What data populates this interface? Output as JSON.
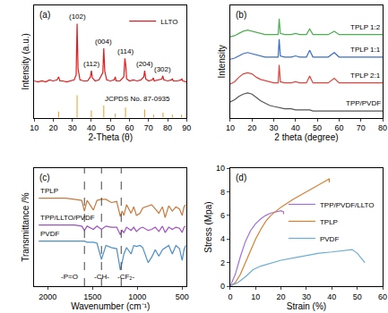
{
  "chart_data": [
    {
      "type": "line",
      "title": "(a)",
      "xlabel": "2-Theta (θ)",
      "ylabel": "Intensity (a.u.)",
      "xlim": [
        10,
        90
      ],
      "xticks": [
        10,
        20,
        30,
        40,
        50,
        60,
        70,
        80,
        90
      ],
      "ylim": [
        0,
        110
      ],
      "tick_labels": "x",
      "legend": "upper right",
      "series": [
        {
          "name": "LLTO",
          "color": "#e41a1c",
          "x": [
            10,
            12,
            14,
            16,
            18,
            20,
            22,
            22.8,
            23.5,
            25,
            27,
            29,
            31,
            32,
            32.5,
            33,
            34,
            36,
            38,
            39.5,
            40,
            40.5,
            42,
            44,
            46,
            46.5,
            47,
            48,
            50,
            52,
            52.5,
            53,
            55,
            57,
            57.6,
            58,
            58.5,
            60,
            62,
            64,
            66,
            67.5,
            68,
            68.5,
            70,
            72,
            72.5,
            73,
            75,
            77,
            77.5,
            78,
            80,
            82,
            82.5,
            83,
            85,
            87,
            87.5,
            88,
            90
          ],
          "values": [
            36,
            35,
            36,
            35,
            37,
            36,
            37,
            40,
            36,
            36,
            35,
            36,
            37,
            42,
            92,
            48,
            37,
            36,
            36,
            40,
            46,
            39,
            36,
            37,
            44,
            68,
            46,
            37,
            36,
            37,
            40,
            36,
            36,
            40,
            58,
            52,
            38,
            36,
            37,
            36,
            37,
            40,
            46,
            38,
            36,
            37,
            39,
            36,
            37,
            38,
            41,
            37,
            36,
            37,
            38,
            36,
            36,
            37,
            38,
            36,
            35
          ]
        },
        {
          "name": "JCPDS No. 87-0935",
          "type": "bar",
          "color": "#f0a030",
          "x": [
            22.8,
            32.5,
            40,
            46.5,
            52.5,
            57.9,
            68,
            72.7,
            77.6,
            82.5,
            87.3
          ],
          "values": [
            6,
            22,
            7,
            12,
            4,
            10,
            8,
            3,
            5,
            3,
            3
          ]
        }
      ],
      "annotations": [
        {
          "x": 32.5,
          "y": 93,
          "text": "(102)"
        },
        {
          "x": 40,
          "y": 47,
          "text": "(112)"
        },
        {
          "x": 46.5,
          "y": 69,
          "text": "(004)"
        },
        {
          "x": 58,
          "y": 59,
          "text": "(114)"
        },
        {
          "x": 68,
          "y": 47,
          "text": "(204)"
        },
        {
          "x": 77.5,
          "y": 42,
          "text": "(302)"
        }
      ]
    },
    {
      "type": "line",
      "title": "(b)",
      "xlabel": "2 theta (degree)",
      "ylabel": "Intensity",
      "xlim": [
        10,
        80
      ],
      "xticks": [
        10,
        20,
        30,
        40,
        50,
        60,
        70,
        80
      ],
      "ylim": [
        0,
        100
      ],
      "tick_labels": "x",
      "series": [
        {
          "name": "TPP/PVDF",
          "color": "#555555",
          "x": [
            10,
            12,
            14,
            16,
            18,
            20,
            22,
            24,
            26,
            28,
            30,
            32,
            32.5,
            33,
            35,
            38,
            40,
            42,
            45,
            46.5,
            48,
            50,
            55,
            57.8,
            60,
            65,
            70,
            75,
            80
          ],
          "values": [
            14,
            16,
            19,
            21,
            22,
            21,
            18,
            15,
            13,
            11,
            10,
            9,
            9,
            9,
            8,
            8,
            7,
            7,
            7,
            7,
            6,
            6,
            6,
            6,
            6,
            6,
            6,
            6,
            6
          ]
        },
        {
          "name": "TPLP 2:1",
          "color": "#e0443c",
          "x": [
            10,
            12,
            14,
            16,
            18,
            20,
            22,
            24,
            26,
            28,
            30,
            32,
            32.5,
            33,
            35,
            38,
            40,
            42,
            45,
            46.5,
            48,
            50,
            55,
            57.8,
            60,
            65,
            70,
            75,
            80
          ],
          "values": [
            30,
            32,
            36,
            39,
            40,
            39,
            36,
            34,
            33,
            32,
            31,
            31,
            47,
            32,
            31,
            31,
            32,
            31,
            31,
            37,
            31,
            31,
            31,
            35,
            31,
            31,
            31,
            31,
            31
          ]
        },
        {
          "name": "TPLP 1:1",
          "color": "#3a6fc4",
          "x": [
            10,
            12,
            14,
            16,
            18,
            20,
            22,
            24,
            26,
            28,
            30,
            32,
            32.5,
            33,
            35,
            38,
            40,
            42,
            45,
            46.5,
            48,
            50,
            55,
            57.8,
            60,
            65,
            70,
            75,
            80
          ],
          "values": [
            52,
            53,
            55,
            57,
            58,
            57,
            56,
            55,
            54,
            54,
            54,
            54,
            70,
            55,
            54,
            54,
            55,
            54,
            54,
            60,
            54,
            54,
            54,
            58,
            54,
            54,
            54,
            54,
            54
          ]
        },
        {
          "name": "TPLP 1:2",
          "color": "#4caf50",
          "x": [
            10,
            12,
            14,
            16,
            18,
            20,
            22,
            24,
            26,
            28,
            30,
            32,
            32.5,
            33,
            35,
            38,
            40,
            42,
            45,
            46.5,
            48,
            50,
            55,
            57.8,
            60,
            65,
            70,
            75,
            80
          ],
          "values": [
            72,
            73,
            75,
            77,
            78,
            77,
            76,
            75,
            74,
            74,
            74,
            74,
            88,
            75,
            74,
            74,
            75,
            74,
            74,
            79,
            74,
            74,
            74,
            77,
            74,
            74,
            74,
            74,
            74
          ]
        }
      ]
    },
    {
      "type": "line",
      "title": "(c)",
      "xlabel": "Wavenumber (cm⁻¹)",
      "ylabel": "Transmittance /%",
      "xlim": [
        2150,
        450
      ],
      "xticks": [
        2000,
        1500,
        1000,
        500
      ],
      "ylim": [
        0,
        110
      ],
      "tick_labels": "x",
      "reference_lines": [
        1590,
        1400,
        1180
      ],
      "series": [
        {
          "name": "TPLP",
          "color": "#c87a3a",
          "x": [
            2100,
            2000,
            1900,
            1800,
            1700,
            1620,
            1590,
            1560,
            1490,
            1450,
            1400,
            1350,
            1290,
            1230,
            1190,
            1170,
            1150,
            1120,
            1070,
            1040,
            1010,
            970,
            940,
            880,
            840,
            800,
            760,
            720,
            690,
            650,
            610,
            570,
            530,
            500,
            480,
            460
          ],
          "values": [
            82,
            82,
            82,
            82,
            81,
            80,
            70,
            80,
            71,
            80,
            81,
            81,
            78,
            79,
            65,
            70,
            66,
            76,
            68,
            74,
            66,
            68,
            73,
            75,
            76,
            72,
            68,
            74,
            64,
            75,
            70,
            74,
            72,
            66,
            74,
            76
          ]
        },
        {
          "name": "TPP/LLTO/PVDF",
          "color": "#a050c0",
          "x": [
            2100,
            2000,
            1900,
            1800,
            1700,
            1620,
            1590,
            1560,
            1490,
            1450,
            1400,
            1350,
            1290,
            1230,
            1190,
            1170,
            1150,
            1120,
            1070,
            1040,
            1010,
            970,
            940,
            880,
            840,
            800,
            760,
            720,
            690,
            650,
            610,
            570,
            530,
            500,
            480,
            460
          ],
          "values": [
            57,
            57,
            57,
            57,
            57,
            56,
            52,
            56,
            53,
            56,
            53,
            56,
            55,
            55,
            48,
            52,
            50,
            55,
            52,
            55,
            51,
            54,
            55,
            52,
            53,
            55,
            51,
            56,
            50,
            55,
            53,
            55,
            54,
            50,
            55,
            56
          ]
        },
        {
          "name": "PVDF",
          "color": "#4a90c8",
          "x": [
            2100,
            2000,
            1900,
            1800,
            1700,
            1620,
            1590,
            1560,
            1490,
            1450,
            1400,
            1350,
            1290,
            1230,
            1190,
            1170,
            1150,
            1120,
            1070,
            1040,
            1010,
            970,
            940,
            880,
            840,
            800,
            760,
            720,
            690,
            650,
            610,
            570,
            530,
            500,
            480,
            460
          ],
          "values": [
            42,
            42,
            42,
            42,
            42,
            42,
            42,
            41,
            41,
            40,
            25,
            38,
            36,
            35,
            15,
            22,
            30,
            36,
            30,
            38,
            37,
            38,
            36,
            22,
            27,
            34,
            28,
            34,
            36,
            38,
            30,
            38,
            35,
            24,
            34,
            38
          ]
        }
      ],
      "annotations": [
        {
          "x": 1760,
          "y": 3,
          "text": "-P=O"
        },
        {
          "x": 1400,
          "y": 3,
          "text": "-CH-"
        },
        {
          "x": 1130,
          "y": 3,
          "text": "-CF₂-"
        }
      ]
    },
    {
      "type": "line",
      "title": "(d)",
      "xlabel": "Strain (%)",
      "ylabel": "Stress (Mpa)",
      "xlim": [
        0,
        60
      ],
      "xticks": [
        0,
        10,
        20,
        30,
        40,
        50,
        60
      ],
      "ylim": [
        0,
        10
      ],
      "yticks": [
        0,
        2,
        4,
        6,
        8,
        10
      ],
      "legend": "right",
      "series": [
        {
          "name": "TPP/PVDF/LLTO",
          "color": "#a070e0",
          "x": [
            0,
            2,
            4,
            6,
            8,
            10,
            12,
            14,
            16,
            18,
            20,
            21,
            21
          ],
          "values": [
            0,
            1,
            2.5,
            3.8,
            4.7,
            5.3,
            5.7,
            6,
            6.2,
            6.3,
            6.4,
            6.3,
            6.1
          ]
        },
        {
          "name": "TPLP",
          "color": "#d88030",
          "x": [
            0,
            2,
            4,
            6,
            8,
            10,
            12,
            14,
            16,
            20,
            25,
            30,
            35,
            38,
            39,
            39
          ],
          "values": [
            0,
            0.3,
            1,
            2,
            3,
            4,
            4.8,
            5.5,
            6,
            6.7,
            7.4,
            8,
            8.6,
            9,
            9.1,
            8.8
          ]
        },
        {
          "name": "PVDF",
          "color": "#6aaed6",
          "x": [
            0,
            3,
            6,
            9,
            12,
            15,
            20,
            25,
            30,
            35,
            40,
            45,
            48,
            50,
            52,
            53
          ],
          "values": [
            0,
            0.3,
            0.8,
            1.4,
            1.7,
            1.9,
            2.2,
            2.4,
            2.6,
            2.8,
            2.9,
            3,
            3.1,
            2.8,
            2.3,
            2
          ]
        }
      ]
    }
  ]
}
